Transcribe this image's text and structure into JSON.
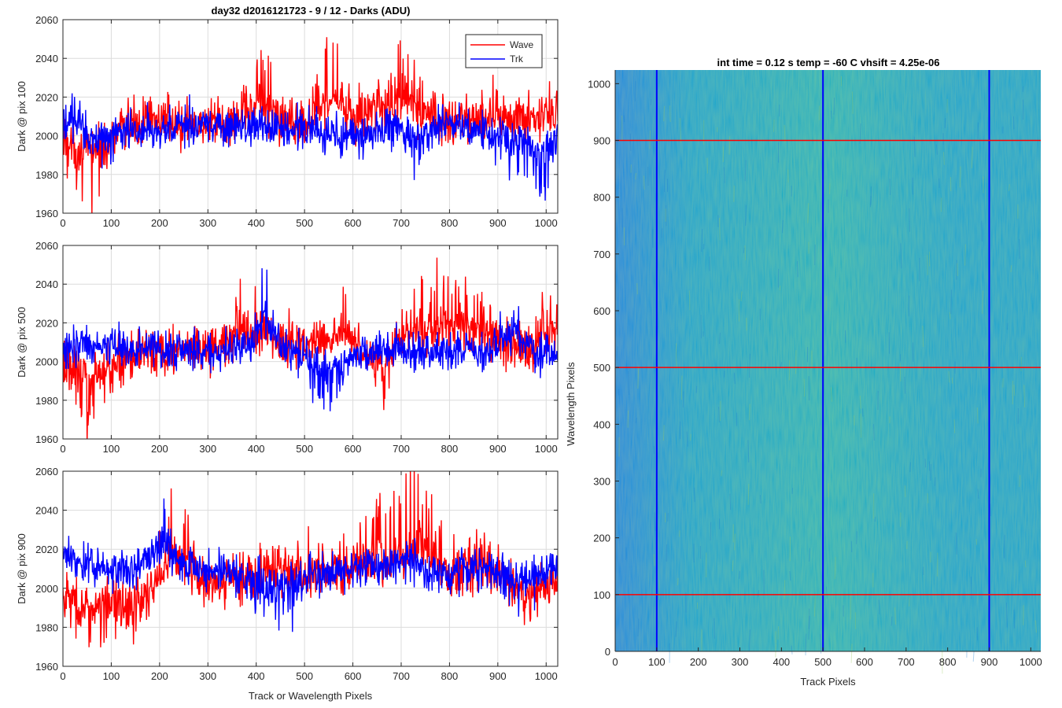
{
  "figure": {
    "left_title": "day32 d2016121723 - 9 / 12 - Darks (ADU)",
    "right_title": "int time = 0.12 s   temp = -60 C   vhsift = 4.25e-06"
  },
  "chart_data": [
    {
      "type": "line",
      "xlabel": "",
      "ylabel": "Dark @ pix 100",
      "xlim": [
        0,
        1024
      ],
      "ylim": [
        1960,
        2060
      ],
      "xticks": [
        0,
        100,
        200,
        300,
        400,
        500,
        600,
        700,
        800,
        900,
        1000
      ],
      "yticks": [
        1960,
        1980,
        2000,
        2020,
        2040,
        2060
      ],
      "grid": true,
      "legend": {
        "placement": "top-right",
        "entries": [
          "Wave",
          "Trk"
        ]
      },
      "series": [
        {
          "name": "Wave",
          "color": "#ff0000",
          "base": 2004,
          "amp": 6,
          "trend": 2,
          "x": [
            0,
            60,
            130,
            200,
            280,
            360,
            405,
            440,
            500,
            560,
            600,
            650,
            705,
            740,
            800,
            870,
            950,
            1024
          ],
          "y": [
            1990,
            1967,
            2008,
            2012,
            2005,
            2014,
            2043,
            2020,
            2010,
            2047,
            2015,
            2030,
            2050,
            2025,
            2012,
            2015,
            2020,
            2018
          ]
        },
        {
          "name": "Trk",
          "color": "#0000ff",
          "base": 2003,
          "amp": 5,
          "trend": -1,
          "x": [
            0,
            30,
            60,
            120,
            200,
            280,
            350,
            430,
            500,
            560,
            620,
            690,
            730,
            790,
            860,
            930,
            1000,
            1024
          ],
          "y": [
            2008,
            2020,
            1985,
            2000,
            2005,
            2010,
            2007,
            2008,
            2003,
            2001,
            1996,
            2006,
            1988,
            2012,
            2003,
            1986,
            1970,
            1992
          ]
        }
      ]
    },
    {
      "type": "line",
      "xlabel": "",
      "ylabel": "Dark @ pix 500",
      "xlim": [
        0,
        1024
      ],
      "ylim": [
        1960,
        2060
      ],
      "xticks": [
        0,
        100,
        200,
        300,
        400,
        500,
        600,
        700,
        800,
        900,
        1000
      ],
      "yticks": [
        1960,
        1980,
        2000,
        2020,
        2040,
        2060
      ],
      "grid": true,
      "series": [
        {
          "name": "Wave",
          "color": "#ff0000",
          "base": 2006,
          "amp": 6,
          "trend": 0,
          "x": [
            0,
            60,
            150,
            250,
            320,
            380,
            450,
            520,
            580,
            660,
            700,
            760,
            830,
            900,
            960,
            1024
          ],
          "y": [
            1993,
            1965,
            2002,
            2005,
            2008,
            2040,
            2015,
            2010,
            2030,
            1978,
            2030,
            2035,
            2048,
            2020,
            2005,
            2038
          ]
        },
        {
          "name": "Trk",
          "color": "#0000ff",
          "base": 2006,
          "amp": 5,
          "trend": 0,
          "x": [
            0,
            100,
            200,
            300,
            380,
            420,
            450,
            480,
            540,
            620,
            700,
            800,
            880,
            930,
            980,
            1024
          ],
          "y": [
            2010,
            2012,
            2008,
            2004,
            2010,
            2053,
            2008,
            2003,
            1976,
            2005,
            2007,
            2004,
            2000,
            2030,
            2004,
            2002
          ]
        }
      ]
    },
    {
      "type": "line",
      "xlabel": "Track or Wavelength Pixels",
      "ylabel": "Dark @ pix 900",
      "xlim": [
        0,
        1024
      ],
      "ylim": [
        1960,
        2060
      ],
      "xticks": [
        0,
        100,
        200,
        300,
        400,
        500,
        600,
        700,
        800,
        900,
        1000
      ],
      "yticks": [
        1960,
        1980,
        2000,
        2020,
        2040,
        2060
      ],
      "grid": true,
      "series": [
        {
          "name": "Wave",
          "color": "#ff0000",
          "base": 2002,
          "amp": 6,
          "trend": 5,
          "x": [
            0,
            40,
            100,
            160,
            230,
            300,
            380,
            450,
            520,
            600,
            650,
            690,
            735,
            800,
            900,
            960,
            1024
          ],
          "y": [
            1995,
            1969,
            1983,
            1975,
            2047,
            2003,
            2010,
            2020,
            2015,
            2025,
            2040,
            2045,
            2059,
            2020,
            2022,
            1985,
            2003
          ]
        },
        {
          "name": "Trk",
          "color": "#0000ff",
          "base": 2011,
          "amp": 5,
          "trend": -2,
          "x": [
            0,
            60,
            120,
            170,
            200,
            215,
            230,
            260,
            350,
            440,
            520,
            600,
            700,
            780,
            870,
            950,
            1024
          ],
          "y": [
            2025,
            2010,
            2005,
            2015,
            2035,
            2042,
            2030,
            2008,
            2005,
            1981,
            2005,
            2007,
            2018,
            2006,
            2010,
            1991,
            2008
          ]
        }
      ]
    },
    {
      "type": "heatmap",
      "xlabel": "Track Pixels",
      "ylabel": "Wavelength Pixels",
      "xlim": [
        0,
        1024
      ],
      "ylim": [
        0,
        1024
      ],
      "xticks": [
        0,
        100,
        200,
        300,
        400,
        500,
        600,
        700,
        800,
        900,
        1000
      ],
      "yticks": [
        0,
        100,
        200,
        300,
        400,
        500,
        600,
        700,
        800,
        900,
        1000
      ],
      "grid": false,
      "colormap": [
        "#1e7fd2",
        "#199fbe",
        "#26b0a8",
        "#9ccb5e"
      ],
      "lines": [
        {
          "orientation": "vertical",
          "value": 100,
          "color": "#0000ff"
        },
        {
          "orientation": "vertical",
          "value": 500,
          "color": "#0000ff"
        },
        {
          "orientation": "vertical",
          "value": 900,
          "color": "#0000ff"
        },
        {
          "orientation": "horizontal",
          "value": 100,
          "color": "#ff0000"
        },
        {
          "orientation": "horizontal",
          "value": 500,
          "color": "#ff0000"
        },
        {
          "orientation": "horizontal",
          "value": 900,
          "color": "#ff0000"
        }
      ]
    }
  ]
}
